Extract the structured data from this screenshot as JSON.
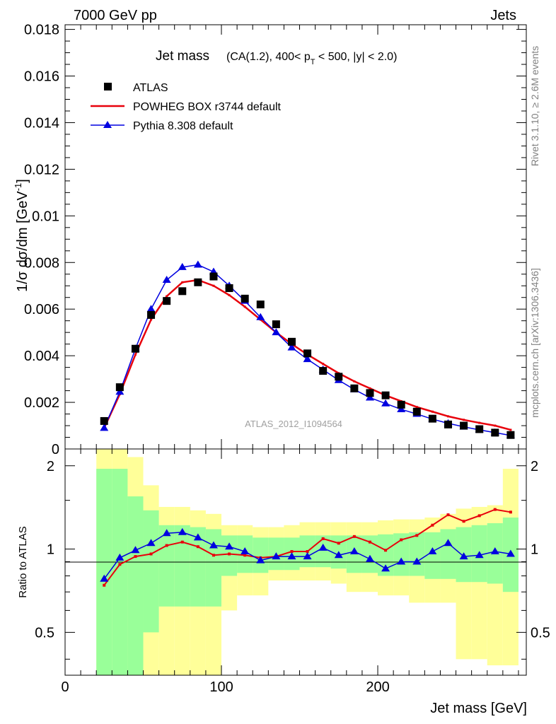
{
  "header": {
    "left": "7000 GeV pp",
    "right": "Jets"
  },
  "side_labels": {
    "rivet": "Rivet 3.1.10, ≥ 2.6M events",
    "mcplots": "mcplots.cern.ch [arXiv:1306.3436]"
  },
  "watermark": "ATLAS_2012_I1094564",
  "chart_data": [
    {
      "type": "scatter",
      "title": "Jet mass",
      "subtitle": "(CA(1.2), 400< p_T < 500, |y| < 2.0)",
      "xlabel": "Jet mass [GeV]",
      "ylabel": "1/σ dσ/dm [GeV⁻¹]",
      "xlim": [
        0,
        295
      ],
      "ylim": [
        0,
        0.0182
      ],
      "x_ticks": [
        "0",
        "100",
        "200"
      ],
      "y_ticks": [
        "0",
        "0.002",
        "0.004",
        "0.006",
        "0.008",
        "0.01",
        "0.012",
        "0.014",
        "0.016",
        "0.018"
      ],
      "legend_position": "top-left",
      "x": [
        25,
        35,
        45,
        55,
        65,
        75,
        85,
        95,
        105,
        115,
        125,
        135,
        145,
        155,
        165,
        175,
        185,
        195,
        205,
        215,
        225,
        235,
        245,
        255,
        265,
        275,
        285
      ],
      "series": [
        {
          "name": "ATLAS",
          "style": "markers",
          "color": "#000000",
          "values": [
            0.0012,
            0.00265,
            0.0043,
            0.00575,
            0.00635,
            0.00677,
            0.00715,
            0.0074,
            0.0069,
            0.00645,
            0.0062,
            0.00535,
            0.0046,
            0.0041,
            0.00335,
            0.0031,
            0.0026,
            0.0024,
            0.0023,
            0.0019,
            0.0016,
            0.0013,
            0.00105,
            0.001,
            0.00085,
            0.0007,
            0.0006
          ]
        },
        {
          "name": "POWHEG BOX r3744 default",
          "style": "line",
          "color": "#e8000b",
          "values": [
            0.0009,
            0.00235,
            0.00405,
            0.00555,
            0.00655,
            0.00715,
            0.00725,
            0.007,
            0.0066,
            0.0061,
            0.00555,
            0.005,
            0.0045,
            0.00405,
            0.00365,
            0.00325,
            0.0029,
            0.0026,
            0.0023,
            0.00205,
            0.0018,
            0.0016,
            0.0014,
            0.00125,
            0.00112,
            0.001,
            0.00082
          ]
        },
        {
          "name": "Pythia 8.308 default",
          "style": "line-triangles",
          "color": "#0000e0",
          "values": [
            0.0009,
            0.00245,
            0.0043,
            0.006,
            0.00725,
            0.0078,
            0.0079,
            0.0076,
            0.007,
            0.00635,
            0.00565,
            0.005,
            0.00435,
            0.00385,
            0.0034,
            0.00295,
            0.00255,
            0.0022,
            0.00195,
            0.0017,
            0.0015,
            0.00128,
            0.0011,
            0.00095,
            0.00082,
            0.0007,
            0.00058
          ]
        }
      ]
    },
    {
      "type": "line",
      "ylabel": "Ratio to ATLAS",
      "xlabel": "Jet mass [GeV]",
      "xlim": [
        0,
        295
      ],
      "ylim": [
        0.35,
        2.3
      ],
      "x_ticks": [
        "0",
        "100",
        "200"
      ],
      "y_ticks": [
        "0.5",
        "1",
        "2"
      ],
      "reference_line": 1,
      "bin_edges": [
        20,
        30,
        40,
        50,
        60,
        70,
        80,
        90,
        100,
        110,
        120,
        130,
        140,
        150,
        160,
        170,
        180,
        190,
        200,
        210,
        220,
        230,
        240,
        250,
        260,
        270,
        280,
        290
      ],
      "band_inner": {
        "color": "#99ff99",
        "low": [
          0.35,
          0.35,
          0.35,
          0.5,
          0.62,
          0.62,
          0.62,
          0.62,
          0.8,
          0.82,
          0.82,
          0.84,
          0.84,
          0.86,
          0.86,
          0.85,
          0.82,
          0.82,
          0.8,
          0.8,
          0.8,
          0.78,
          0.78,
          0.76,
          0.76,
          0.75,
          0.7
        ],
        "high": [
          1.95,
          1.95,
          1.55,
          1.38,
          1.22,
          1.22,
          1.2,
          1.18,
          1.12,
          1.12,
          1.1,
          1.1,
          1.1,
          1.12,
          1.12,
          1.12,
          1.12,
          1.12,
          1.13,
          1.14,
          1.15,
          1.15,
          1.18,
          1.2,
          1.22,
          1.24,
          1.3
        ]
      },
      "band_outer": {
        "color": "#ffff99",
        "low": [
          0.35,
          0.35,
          0.35,
          0.35,
          0.35,
          0.35,
          0.35,
          0.35,
          0.6,
          0.68,
          0.68,
          0.77,
          0.77,
          0.77,
          0.77,
          0.75,
          0.7,
          0.7,
          0.68,
          0.68,
          0.64,
          0.64,
          0.64,
          0.4,
          0.4,
          0.38,
          0.38
        ],
        "high": [
          2.3,
          2.3,
          2.15,
          1.7,
          1.42,
          1.42,
          1.38,
          1.34,
          1.22,
          1.22,
          1.2,
          1.2,
          1.22,
          1.25,
          1.25,
          1.25,
          1.25,
          1.25,
          1.27,
          1.28,
          1.28,
          1.3,
          1.34,
          1.4,
          1.42,
          1.44,
          1.95
        ]
      },
      "x": [
        25,
        35,
        45,
        55,
        65,
        75,
        85,
        95,
        105,
        115,
        125,
        135,
        145,
        155,
        165,
        175,
        185,
        195,
        205,
        215,
        225,
        235,
        245,
        255,
        265,
        275,
        285
      ],
      "series": [
        {
          "name": "POWHEG BOX r3744 default",
          "color": "#e8000b",
          "values": [
            0.74,
            0.88,
            0.94,
            0.96,
            1.03,
            1.06,
            1.02,
            0.95,
            0.96,
            0.95,
            0.93,
            0.94,
            0.98,
            0.98,
            1.09,
            1.05,
            1.11,
            1.06,
            0.99,
            1.08,
            1.12,
            1.22,
            1.33,
            1.26,
            1.32,
            1.39,
            1.36
          ]
        },
        {
          "name": "Pythia 8.308 default",
          "color": "#0000e0",
          "values": [
            0.78,
            0.93,
            0.99,
            1.05,
            1.14,
            1.15,
            1.1,
            1.03,
            1.02,
            0.98,
            0.91,
            0.94,
            0.94,
            0.94,
            1.01,
            0.95,
            0.98,
            0.92,
            0.85,
            0.9,
            0.9,
            0.98,
            1.05,
            0.94,
            0.95,
            0.98,
            0.96
          ]
        }
      ]
    }
  ]
}
